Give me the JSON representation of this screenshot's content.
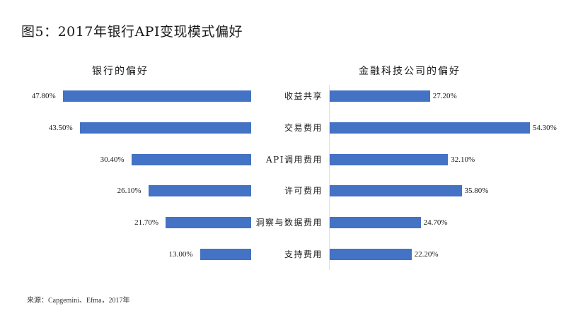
{
  "title": "图5：2017年银行API变现模式偏好",
  "source": "来源：Capgemini、Efma，2017年",
  "colors": {
    "bar": "#4472c4"
  },
  "chart_data": [
    {
      "type": "bar",
      "orientation": "horizontal-reversed",
      "title": "银行的偏好",
      "categories": [
        "收益共享",
        "交易费用",
        "API调用费用",
        "许可费用",
        "洞察与数据费用",
        "支持费用"
      ],
      "values": [
        47.8,
        43.5,
        30.4,
        26.1,
        21.7,
        13.0
      ],
      "labels": [
        "47.80%",
        "43.50%",
        "30.40%",
        "26.10%",
        "21.70%",
        "13.00%"
      ],
      "grid": false
    },
    {
      "type": "bar",
      "orientation": "horizontal",
      "title": "金融科技公司的偏好",
      "categories": [
        "收益共享",
        "交易费用",
        "API调用费用",
        "许可费用",
        "洞察与数据费用",
        "支持费用"
      ],
      "values": [
        27.2,
        54.3,
        32.1,
        35.8,
        24.7,
        22.2
      ],
      "labels": [
        "27.20%",
        "54.30%",
        "32.10%",
        "35.80%",
        "24.70%",
        "22.20%"
      ],
      "grid": false
    }
  ]
}
